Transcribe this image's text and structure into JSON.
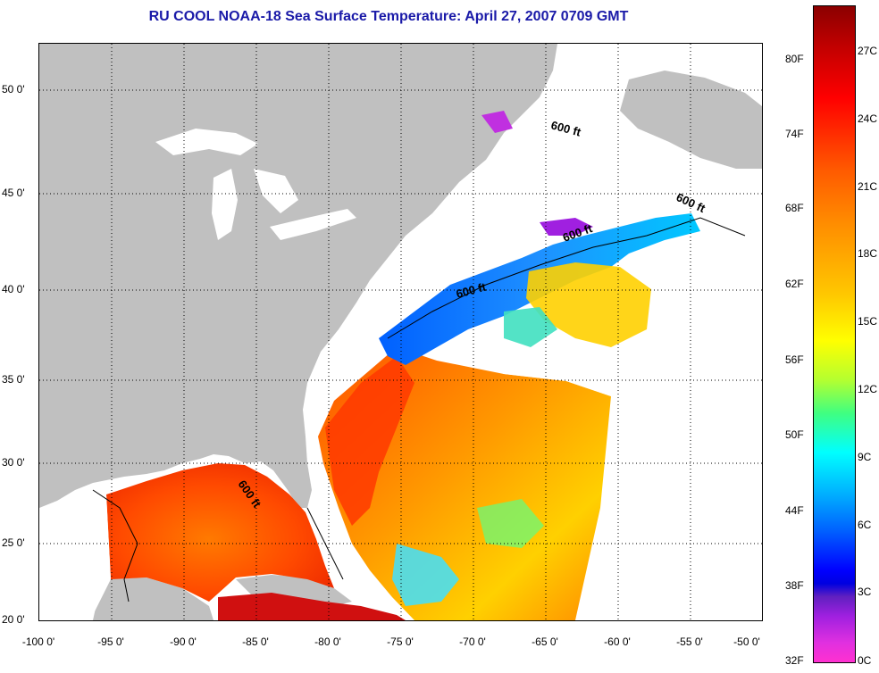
{
  "title": "RU COOL  NOAA-18  Sea Surface Temperature:  April 27, 2007 0709 GMT",
  "map": {
    "x_ticks": [
      "-100 0'",
      "-95 0'",
      "-90 0'",
      "-85 0'",
      "-80 0'",
      "-75 0'",
      "-70 0'",
      "-65 0'",
      "-60 0'",
      "-55 0'",
      "-50 0'"
    ],
    "y_ticks": [
      "50 0'",
      "45 0'",
      "40 0'",
      "35 0'",
      "30 0'",
      "25 0'",
      "20 0'"
    ],
    "contour_labels": [
      "600 ft",
      "600 ft",
      "600 ft",
      "600 ft",
      "600 ft"
    ],
    "colors": {
      "land": "#c0c0c0",
      "no_data": "#ffffff",
      "grid": "#000000"
    }
  },
  "colorbar": {
    "fahrenheit_labels": [
      "80F",
      "74F",
      "68F",
      "62F",
      "56F",
      "50F",
      "44F",
      "38F",
      "32F"
    ],
    "celsius_labels": [
      "27C",
      "24C",
      "21C",
      "18C",
      "15C",
      "12C",
      "9C",
      "6C",
      "3C",
      "0C"
    ]
  }
}
